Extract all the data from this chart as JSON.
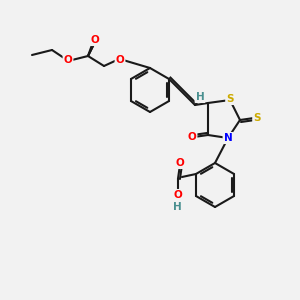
{
  "bg_color": "#f2f2f2",
  "bond_color": "#1a1a1a",
  "bond_width": 1.5,
  "atom_colors": {
    "O": "#ff0000",
    "N": "#0000ff",
    "S": "#ccaa00",
    "H": "#4a9090",
    "C": "#1a1a1a"
  },
  "font_size": 7.5
}
